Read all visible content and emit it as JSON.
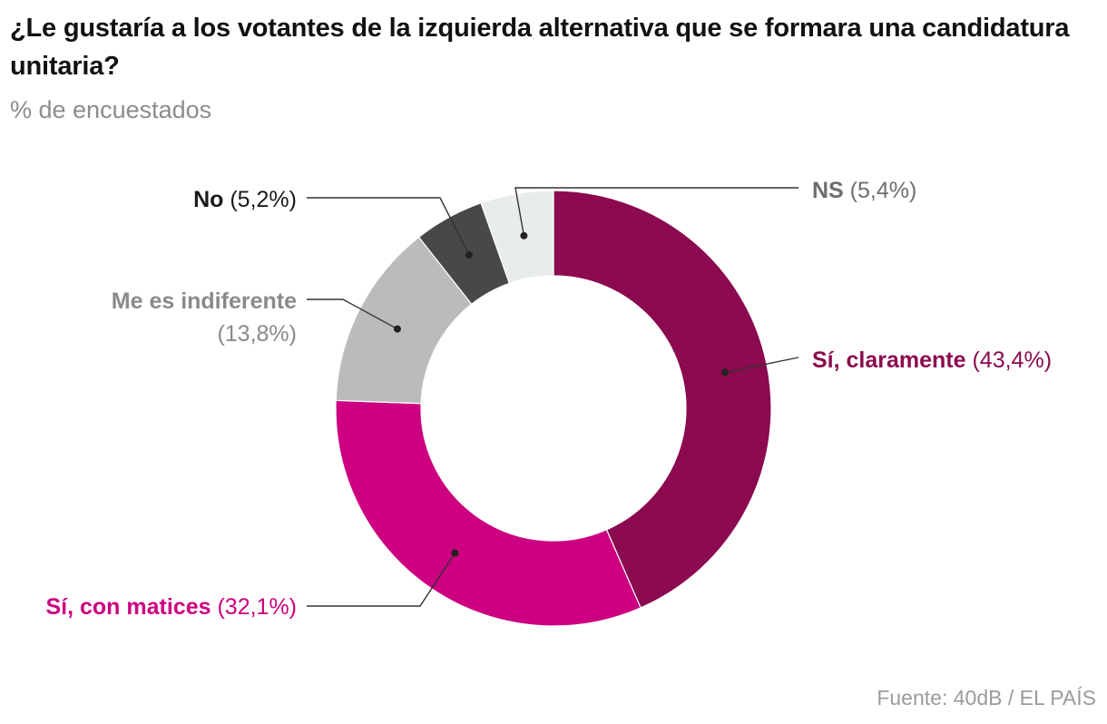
{
  "title": "¿Le gustaría a los votantes de la izquierda alternativa que se formara una candidatura unitaria?",
  "subtitle": "% de encuestados",
  "source": "Fuente: 40dB / EL PAÍS",
  "chart_data": {
    "type": "pie",
    "variant": "donut",
    "title": "¿Le gustaría a los votantes de la izquierda alternativa que se formara una candidatura unitaria?",
    "subtitle": "% de encuestados",
    "unit": "%",
    "slices": [
      {
        "label": "Sí, claramente",
        "value": 43.4,
        "value_text": "(43,4%)",
        "color": "#8b0a50"
      },
      {
        "label": "Sí, con matices",
        "value": 32.1,
        "value_text": "(32,1%)",
        "color": "#cc0080"
      },
      {
        "label": "Me es indiferente",
        "value": 13.8,
        "value_text": "(13,8%)",
        "color": "#bbbbbb"
      },
      {
        "label": "No",
        "value": 5.2,
        "value_text": "(5,2%)",
        "color": "#484848"
      },
      {
        "label": "NS",
        "value": 5.4,
        "value_text": "(5,4%)",
        "color": "#e9eced"
      }
    ],
    "label_colors": [
      "#8b0a50",
      "#cc0080",
      "#8a8a8a",
      "#1a1a1a",
      "#6e6e6e"
    ],
    "legend": "none"
  }
}
